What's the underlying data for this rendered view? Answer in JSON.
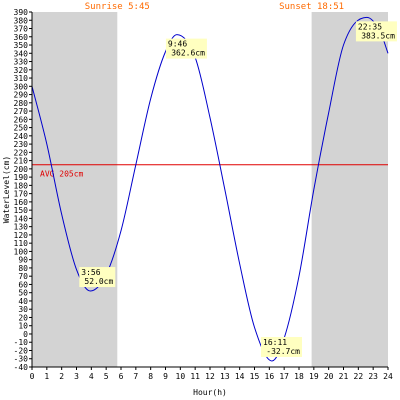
{
  "chart_data": {
    "type": "line",
    "xlabel": "Hour(h)",
    "ylabel": "WaterLevel(cm)",
    "xlim": [
      0,
      24
    ],
    "ylim": [
      -40,
      390
    ],
    "x_ticks": [
      0,
      1,
      2,
      3,
      4,
      5,
      6,
      7,
      8,
      9,
      10,
      11,
      12,
      13,
      14,
      15,
      16,
      17,
      18,
      19,
      20,
      21,
      22,
      23,
      24
    ],
    "y_ticks": [
      -40,
      -30,
      -20,
      -10,
      0,
      10,
      20,
      30,
      40,
      50,
      60,
      70,
      80,
      90,
      100,
      110,
      120,
      130,
      140,
      150,
      160,
      170,
      180,
      190,
      200,
      210,
      220,
      230,
      240,
      250,
      260,
      270,
      280,
      290,
      300,
      310,
      320,
      330,
      340,
      350,
      360,
      370,
      380,
      390
    ],
    "grid": false,
    "sunrise": {
      "label": "Sunrise 5:45",
      "hour": 5.75
    },
    "sunset": {
      "label": "Sunset 18:51",
      "hour": 18.85
    },
    "night_shading_color": "#d3d3d3",
    "average": {
      "label": "AVG 205cm",
      "value": 205,
      "color": "#e00000"
    },
    "series": [
      {
        "color": "#0000cc",
        "x": [
          0,
          1,
          2,
          3,
          3.93,
          5,
          6,
          7,
          8,
          9,
          9.77,
          11,
          12,
          13,
          14,
          15,
          16.18,
          17,
          18,
          19,
          20,
          21,
          22.58,
          23.5,
          24
        ],
        "values": [
          300,
          230,
          145,
          78,
          52,
          72,
          125,
          205,
          285,
          342,
          362.6,
          335,
          262,
          175,
          85,
          8,
          -32.7,
          -5,
          70,
          175,
          268,
          350,
          383.5,
          365,
          340
        ]
      }
    ],
    "extremes": [
      {
        "time": "3:56",
        "level": "52.0cm",
        "hour": 3.93,
        "value": 52.0
      },
      {
        "time": "9:46",
        "level": "362.6cm",
        "hour": 9.77,
        "value": 362.6
      },
      {
        "time": "16:11",
        "level": "-32.7cm",
        "hour": 16.18,
        "value": -32.7
      },
      {
        "time": "22:35",
        "level": "383.5cm",
        "hour": 22.58,
        "value": 383.5
      }
    ],
    "annotation_bg_color": "#ffffc0"
  }
}
